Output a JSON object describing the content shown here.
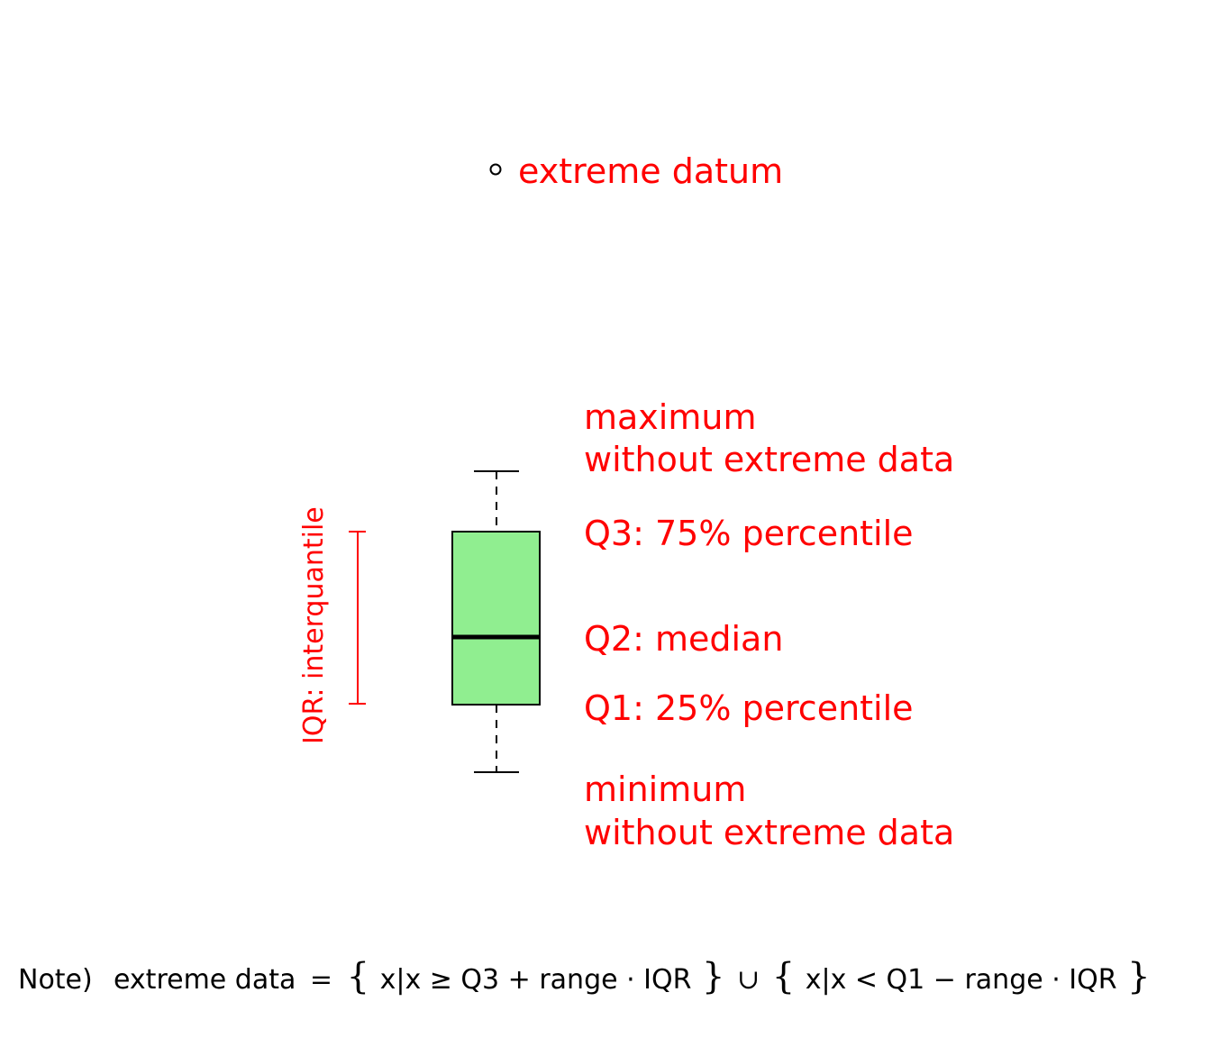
{
  "labels": {
    "extreme": "extreme datum",
    "max_line1": "maximum",
    "max_line2": "without extreme data",
    "q3": "Q3: 75% percentile",
    "q2": "Q2: median",
    "q1": "Q1: 25% percentile",
    "min_line1": "minimum",
    "min_line2": "without extreme data",
    "iqr": "IQR: interquantile"
  },
  "note": {
    "prefix": "Note)",
    "lhs": "extreme data",
    "eq": "=",
    "open1": "{",
    "set1": "x|x ≥ Q3 + range · IQR",
    "close1": "}",
    "union": "∪",
    "open2": "{",
    "set2": "x|x < Q1 − range · IQR",
    "close2": "}"
  },
  "colors": {
    "box_fill": "#90ee90",
    "annotation": "#ff0000",
    "stroke": "#000000"
  }
}
